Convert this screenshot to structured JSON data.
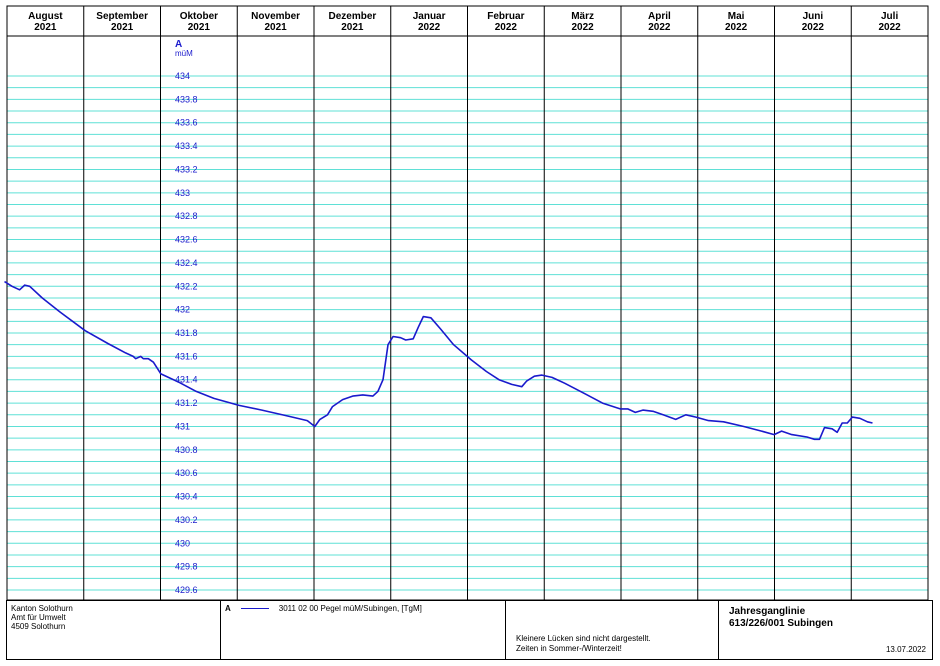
{
  "chart_data": {
    "type": "line",
    "months": [
      {
        "name": "August",
        "year": "2021"
      },
      {
        "name": "September",
        "year": "2021"
      },
      {
        "name": "Oktober",
        "year": "2021"
      },
      {
        "name": "November",
        "year": "2021"
      },
      {
        "name": "Dezember",
        "year": "2021"
      },
      {
        "name": "Januar",
        "year": "2022"
      },
      {
        "name": "Februar",
        "year": "2022"
      },
      {
        "name": "März",
        "year": "2022"
      },
      {
        "name": "April",
        "year": "2022"
      },
      {
        "name": "Mai",
        "year": "2022"
      },
      {
        "name": "Juni",
        "year": "2022"
      },
      {
        "name": "Juli",
        "year": "2022"
      }
    ],
    "y_axis": {
      "letter": "A",
      "unit": "müM",
      "ylim": [
        429.6,
        434
      ],
      "ticks": [
        "434",
        "433.8",
        "433.6",
        "433.4",
        "433.2",
        "433",
        "432.8",
        "432.6",
        "432.4",
        "432.2",
        "432",
        "431.8",
        "431.6",
        "431.4",
        "431.2",
        "431",
        "430.8",
        "430.6",
        "430.4",
        "430.2",
        "430",
        "429.8",
        "429.6"
      ]
    },
    "grid": true,
    "series": [
      {
        "name": "3011 02 00  Pegel müM/Subingen, [TgM]",
        "color": "#1a1acc",
        "points": [
          [
            "2021-07-31",
            432.24
          ],
          [
            "2021-08-03",
            432.2
          ],
          [
            "2021-08-06",
            432.17
          ],
          [
            "2021-08-08",
            432.21
          ],
          [
            "2021-08-10",
            432.2
          ],
          [
            "2021-08-15",
            432.1
          ],
          [
            "2021-08-22",
            431.98
          ],
          [
            "2021-09-01",
            431.82
          ],
          [
            "2021-09-10",
            431.71
          ],
          [
            "2021-09-17",
            431.63
          ],
          [
            "2021-09-20",
            431.6
          ],
          [
            "2021-09-21",
            431.58
          ],
          [
            "2021-09-23",
            431.6
          ],
          [
            "2021-09-24",
            431.58
          ],
          [
            "2021-09-26",
            431.58
          ],
          [
            "2021-09-28",
            431.55
          ],
          [
            "2021-10-01",
            431.45
          ],
          [
            "2021-10-08",
            431.38
          ],
          [
            "2021-10-15",
            431.3
          ],
          [
            "2021-10-22",
            431.24
          ],
          [
            "2021-11-01",
            431.18
          ],
          [
            "2021-11-10",
            431.14
          ],
          [
            "2021-11-20",
            431.09
          ],
          [
            "2021-11-28",
            431.05
          ],
          [
            "2021-12-01",
            431.0
          ],
          [
            "2021-12-03",
            431.06
          ],
          [
            "2021-12-06",
            431.1
          ],
          [
            "2021-12-08",
            431.17
          ],
          [
            "2021-12-12",
            431.23
          ],
          [
            "2021-12-16",
            431.26
          ],
          [
            "2021-12-20",
            431.27
          ],
          [
            "2021-12-24",
            431.26
          ],
          [
            "2021-12-26",
            431.3
          ],
          [
            "2021-12-28",
            431.4
          ],
          [
            "2021-12-30",
            431.7
          ],
          [
            "2022-01-01",
            431.77
          ],
          [
            "2022-01-04",
            431.76
          ],
          [
            "2022-01-06",
            431.74
          ],
          [
            "2022-01-09",
            431.75
          ],
          [
            "2022-01-11",
            431.85
          ],
          [
            "2022-01-13",
            431.94
          ],
          [
            "2022-01-16",
            431.93
          ],
          [
            "2022-01-20",
            431.83
          ],
          [
            "2022-01-25",
            431.7
          ],
          [
            "2022-02-01",
            431.57
          ],
          [
            "2022-02-07",
            431.47
          ],
          [
            "2022-02-12",
            431.4
          ],
          [
            "2022-02-17",
            431.36
          ],
          [
            "2022-02-21",
            431.34
          ],
          [
            "2022-02-23",
            431.39
          ],
          [
            "2022-02-26",
            431.43
          ],
          [
            "2022-03-01",
            431.44
          ],
          [
            "2022-03-05",
            431.42
          ],
          [
            "2022-03-10",
            431.37
          ],
          [
            "2022-03-18",
            431.28
          ],
          [
            "2022-03-25",
            431.2
          ],
          [
            "2022-04-01",
            431.15
          ],
          [
            "2022-04-04",
            431.15
          ],
          [
            "2022-04-07",
            431.12
          ],
          [
            "2022-04-10",
            431.14
          ],
          [
            "2022-04-14",
            431.13
          ],
          [
            "2022-04-18",
            431.1
          ],
          [
            "2022-04-23",
            431.06
          ],
          [
            "2022-04-27",
            431.1
          ],
          [
            "2022-05-01",
            431.08
          ],
          [
            "2022-05-06",
            431.05
          ],
          [
            "2022-05-12",
            431.04
          ],
          [
            "2022-05-20",
            431.0
          ],
          [
            "2022-05-27",
            430.96
          ],
          [
            "2022-06-01",
            430.93
          ],
          [
            "2022-06-04",
            430.96
          ],
          [
            "2022-06-08",
            430.93
          ],
          [
            "2022-06-14",
            430.91
          ],
          [
            "2022-06-17",
            430.89
          ],
          [
            "2022-06-19",
            430.89
          ],
          [
            "2022-06-21",
            430.99
          ],
          [
            "2022-06-24",
            430.98
          ],
          [
            "2022-06-26",
            430.95
          ],
          [
            "2022-06-28",
            431.03
          ],
          [
            "2022-06-30",
            431.03
          ],
          [
            "2022-07-02",
            431.08
          ],
          [
            "2022-07-05",
            431.07
          ],
          [
            "2022-07-08",
            431.04
          ],
          [
            "2022-07-10",
            431.03
          ]
        ]
      }
    ]
  },
  "footer": {
    "org": [
      "Kanton Solothurn",
      "Amt für Umwelt",
      "4509 Solothurn"
    ],
    "legend": {
      "letter": "A",
      "label": "3011 02 00  Pegel müM/Subingen, [TgM]"
    },
    "notes": [
      "Kleinere Lücken sind nicht dargestellt.",
      "Zeiten in Sommer-/Winterzeit!"
    ],
    "title": [
      "Jahresganglinie",
      "613/226/001 Subingen"
    ],
    "date": "13.07.2022"
  }
}
